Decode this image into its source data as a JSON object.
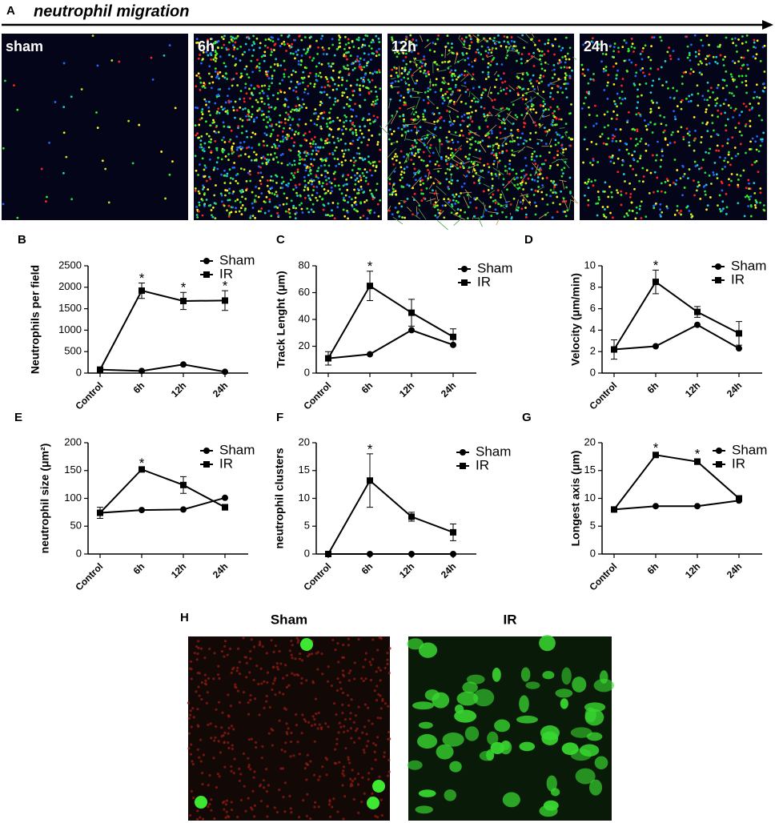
{
  "panel_a": {
    "label": "A",
    "title": "neutrophil migration",
    "images": [
      "sham",
      "6h",
      "12h",
      "24h"
    ]
  },
  "chart_data": [
    {
      "type": "line",
      "panel": "B",
      "ylabel": "Neutrophils per field",
      "categories": [
        "Control",
        "6h",
        "12h",
        "24h"
      ],
      "series": [
        {
          "name": "Sham",
          "color": "#000000",
          "marker": "circle",
          "values": [
            80,
            50,
            200,
            30
          ]
        },
        {
          "name": "IR",
          "color": "#000000",
          "marker": "square",
          "values": [
            80,
            1920,
            1680,
            1690
          ],
          "errors": [
            40,
            180,
            200,
            230
          ]
        }
      ],
      "significance": [
        null,
        "*",
        "*",
        "*"
      ],
      "ylim": [
        0,
        2500
      ],
      "yticks": [
        0,
        500,
        1000,
        1500,
        2000,
        2500
      ]
    },
    {
      "type": "line",
      "panel": "C",
      "ylabel": "Track Lenght (μm)",
      "categories": [
        "Control",
        "6h",
        "12h",
        "24h"
      ],
      "series": [
        {
          "name": "Sham",
          "color": "#000000",
          "marker": "circle",
          "values": [
            11,
            14,
            32,
            21
          ]
        },
        {
          "name": "IR",
          "color": "#000000",
          "marker": "square",
          "values": [
            11,
            65,
            45,
            27
          ],
          "errors": [
            5,
            11,
            10,
            6
          ]
        }
      ],
      "significance": [
        null,
        "*",
        null,
        null
      ],
      "ylim": [
        0,
        80
      ],
      "yticks": [
        0,
        20,
        40,
        60,
        80
      ]
    },
    {
      "type": "line",
      "panel": "D",
      "ylabel": "Velocity (μm/min)",
      "categories": [
        "Control",
        "6h",
        "12h",
        "24h"
      ],
      "series": [
        {
          "name": "Sham",
          "color": "#000000",
          "marker": "circle",
          "values": [
            2.2,
            2.5,
            4.5,
            2.3
          ]
        },
        {
          "name": "IR",
          "color": "#000000",
          "marker": "square",
          "values": [
            2.2,
            8.5,
            5.7,
            3.7
          ],
          "errors": [
            0.9,
            1.1,
            0.5,
            1.1
          ]
        }
      ],
      "significance": [
        null,
        "*",
        null,
        null
      ],
      "ylim": [
        0,
        10
      ],
      "yticks": [
        0,
        2,
        4,
        6,
        8,
        10
      ]
    },
    {
      "type": "line",
      "panel": "E",
      "ylabel": "neutrophil size (μm²)",
      "categories": [
        "Control",
        "6h",
        "12h",
        "24h"
      ],
      "series": [
        {
          "name": "Sham",
          "color": "#000000",
          "marker": "circle",
          "values": [
            74,
            79,
            80,
            101
          ]
        },
        {
          "name": "IR",
          "color": "#000000",
          "marker": "square",
          "values": [
            74,
            152,
            124,
            84
          ],
          "errors": [
            10,
            3,
            15,
            5
          ]
        }
      ],
      "significance": [
        null,
        "*",
        null,
        null
      ],
      "ylim": [
        0,
        200
      ],
      "yticks": [
        0,
        50,
        100,
        150,
        200
      ]
    },
    {
      "type": "line",
      "panel": "F",
      "ylabel": "neutrophil clusters",
      "categories": [
        "Control",
        "6h",
        "12h",
        "24h"
      ],
      "series": [
        {
          "name": "Sham",
          "color": "#000000",
          "marker": "circle",
          "values": [
            0,
            0,
            0,
            0
          ]
        },
        {
          "name": "IR",
          "color": "#000000",
          "marker": "square",
          "values": [
            0,
            13.2,
            6.7,
            3.9
          ],
          "errors": [
            0,
            4.8,
            0.8,
            1.5
          ]
        }
      ],
      "significance": [
        null,
        "*",
        null,
        null
      ],
      "ylim": [
        0,
        20
      ],
      "yticks": [
        0,
        5,
        10,
        15,
        20
      ]
    },
    {
      "type": "line",
      "panel": "G",
      "ylabel": "Longest axis (μm)",
      "categories": [
        "Control",
        "6h",
        "12h",
        "24h"
      ],
      "series": [
        {
          "name": "Sham",
          "color": "#000000",
          "marker": "circle",
          "values": [
            8,
            8.6,
            8.6,
            9.6
          ]
        },
        {
          "name": "IR",
          "color": "#000000",
          "marker": "square",
          "values": [
            8,
            17.8,
            16.6,
            10
          ],
          "errors": [
            0.3,
            0.4,
            0.5,
            0.4
          ]
        }
      ],
      "significance": [
        null,
        "*",
        "*",
        null
      ],
      "ylim": [
        0,
        20
      ],
      "yticks": [
        0,
        5,
        10,
        15,
        20
      ]
    }
  ],
  "panel_h": {
    "label": "H",
    "images": [
      "Sham",
      "IR"
    ]
  }
}
